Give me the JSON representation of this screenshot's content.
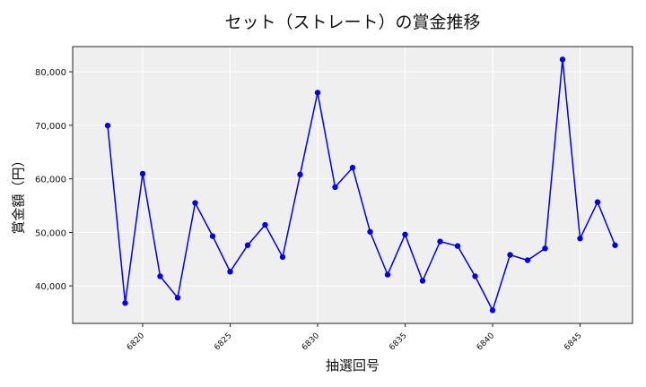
{
  "chart_data": {
    "type": "line",
    "title": "セット（ストレート）の賞金推移",
    "xlabel": "抽選回号",
    "ylabel": "賞金額（円）",
    "x": [
      6818,
      6819,
      6820,
      6821,
      6822,
      6823,
      6824,
      6825,
      6826,
      6827,
      6828,
      6829,
      6830,
      6831,
      6832,
      6833,
      6834,
      6835,
      6836,
      6837,
      6838,
      6839,
      6840,
      6841,
      6842,
      6843,
      6844,
      6845,
      6846,
      6847
    ],
    "values": [
      69950,
      36800,
      60950,
      41800,
      37800,
      55500,
      49300,
      42650,
      47600,
      51400,
      45400,
      60800,
      76100,
      58450,
      62100,
      50100,
      42100,
      49600,
      40950,
      48300,
      47450,
      41800,
      35450,
      45800,
      44800,
      47000,
      82300,
      48850,
      55650,
      47600
    ],
    "xticks": [
      6820,
      6825,
      6830,
      6835,
      6840,
      6845
    ],
    "yticks": [
      40000,
      50000,
      60000,
      70000,
      80000
    ],
    "ytick_labels": [
      "40,000",
      "50,000",
      "60,000",
      "70,000",
      "80,000"
    ],
    "xlim": [
      6816,
      6848
    ],
    "ylim": [
      33000,
      84700
    ],
    "grid": true,
    "line_color": "#0000ee",
    "marker_color": "#0000ee",
    "plot_bg": "#efefef"
  }
}
